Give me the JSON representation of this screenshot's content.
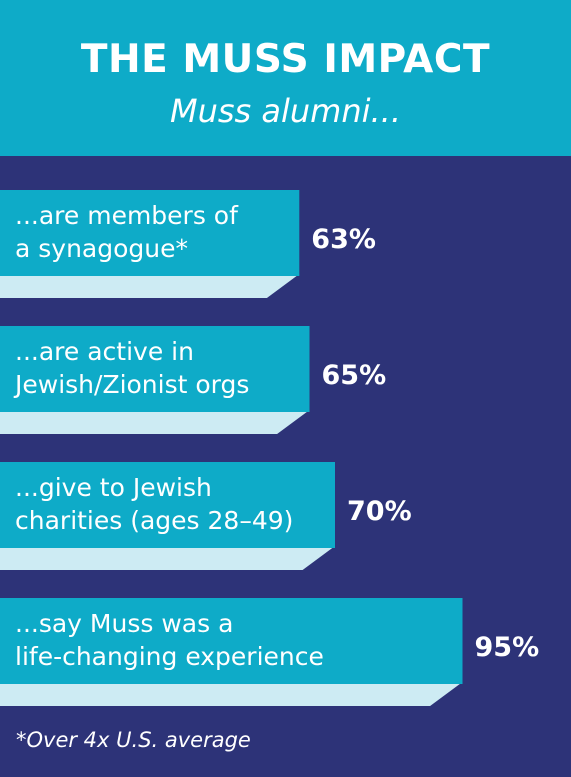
{
  "colors": {
    "background": "#2d3378",
    "header": "#0eabc8",
    "bar": "#0eabc8",
    "bar_shadow": "#cdebf3",
    "text": "#ffffff"
  },
  "header": {
    "title": "THE MUSS IMPACT",
    "subtitle": "Muss alumni..."
  },
  "chart_data": {
    "type": "bar",
    "orientation": "horizontal",
    "categories": [
      [
        "...are members of",
        "a synagogue*"
      ],
      [
        "...are active in",
        "Jewish/Zionist orgs"
      ],
      [
        "...give to Jewish",
        "charities (ages 28–49)"
      ],
      [
        "...say Muss was a",
        "life-changing experience"
      ]
    ],
    "values": [
      63,
      65,
      70,
      95
    ],
    "value_labels": [
      "63%",
      "65%",
      "70%",
      "95%"
    ],
    "unit": "%"
  },
  "footnote": "*Over 4x U.S. average"
}
